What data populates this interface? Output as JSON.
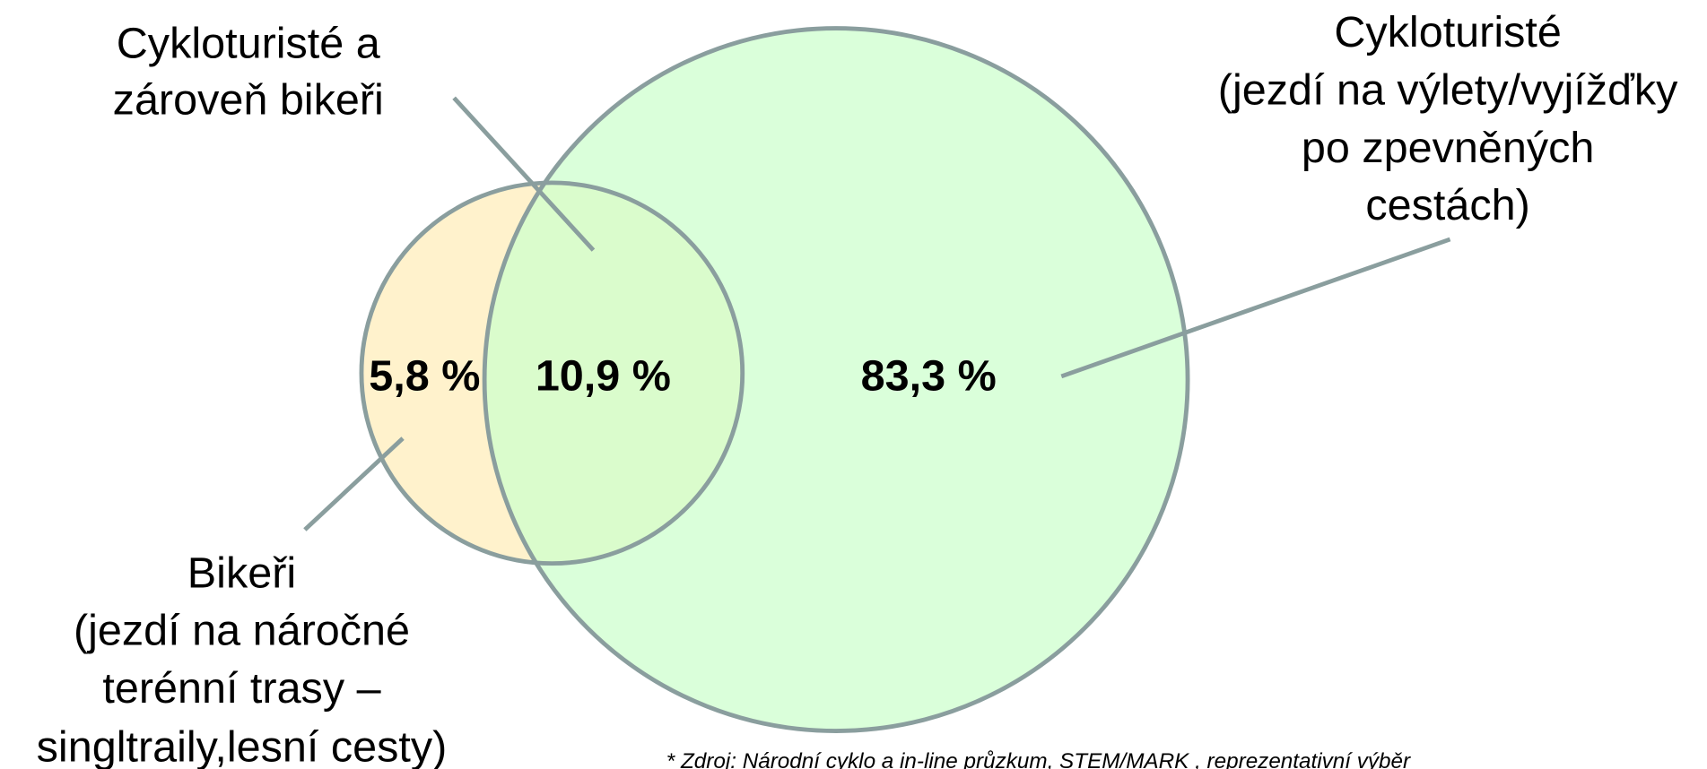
{
  "overlap_label": [
    "Cykloturisté a",
    "zároveň bikeři"
  ],
  "cyclotourists_label": [
    "Cykloturisté",
    "(jezdí na výlety/vyjížďky",
    "po zpevněných",
    "cestách)"
  ],
  "bikers_label": [
    "Bikeři",
    "(jezdí na náročné",
    "terénní trasy –",
    "singltraily,lesní cesty)"
  ],
  "values": {
    "bikers_only": "5,8 %",
    "both": "10,9 %",
    "cyclotourists_only": "83,3 %"
  },
  "footnote": "* Zdroj: Národní cyklo a in-line průzkum, STEM/MARK , reprezentativní výběr"
}
